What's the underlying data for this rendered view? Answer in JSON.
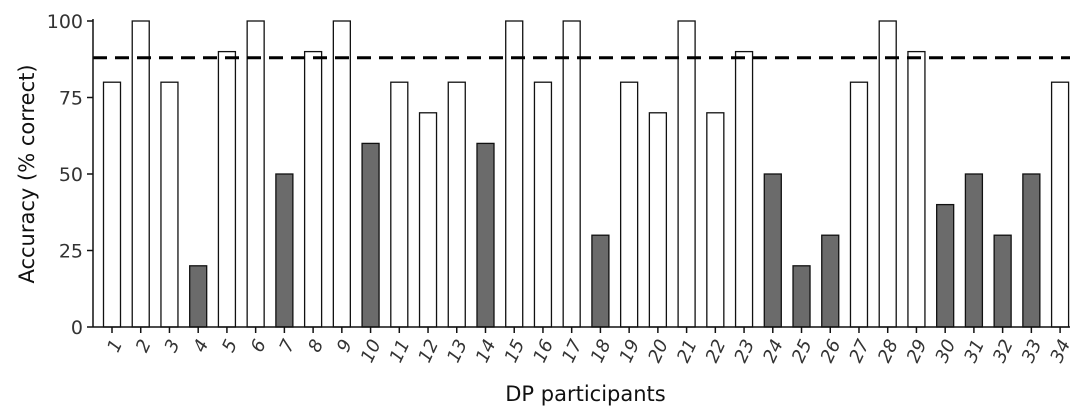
{
  "chart_data": {
    "type": "bar",
    "title": "",
    "xlabel": "DP participants",
    "ylabel": "Accuracy (% correct)",
    "ylim": [
      0,
      100
    ],
    "yticks": [
      0,
      25,
      50,
      75,
      100
    ],
    "categories": [
      "1",
      "2",
      "3",
      "4",
      "5",
      "6",
      "7",
      "8",
      "9",
      "10",
      "11",
      "12",
      "13",
      "14",
      "15",
      "16",
      "17",
      "18",
      "19",
      "20",
      "21",
      "22",
      "23",
      "24",
      "25",
      "26",
      "27",
      "28",
      "29",
      "30",
      "31",
      "32",
      "33",
      "34"
    ],
    "values": [
      80,
      100,
      80,
      20,
      90,
      100,
      50,
      90,
      100,
      60,
      80,
      70,
      80,
      60,
      100,
      80,
      100,
      30,
      80,
      70,
      100,
      70,
      90,
      50,
      20,
      30,
      80,
      100,
      90,
      40,
      50,
      30,
      50,
      80
    ],
    "reference_line": 88,
    "colors": {
      "above_threshold": "#ffffff",
      "below_threshold": "#6b6b6b",
      "edge": "#111111",
      "reference_line": "#000000"
    },
    "grid": false,
    "legend": "none"
  }
}
